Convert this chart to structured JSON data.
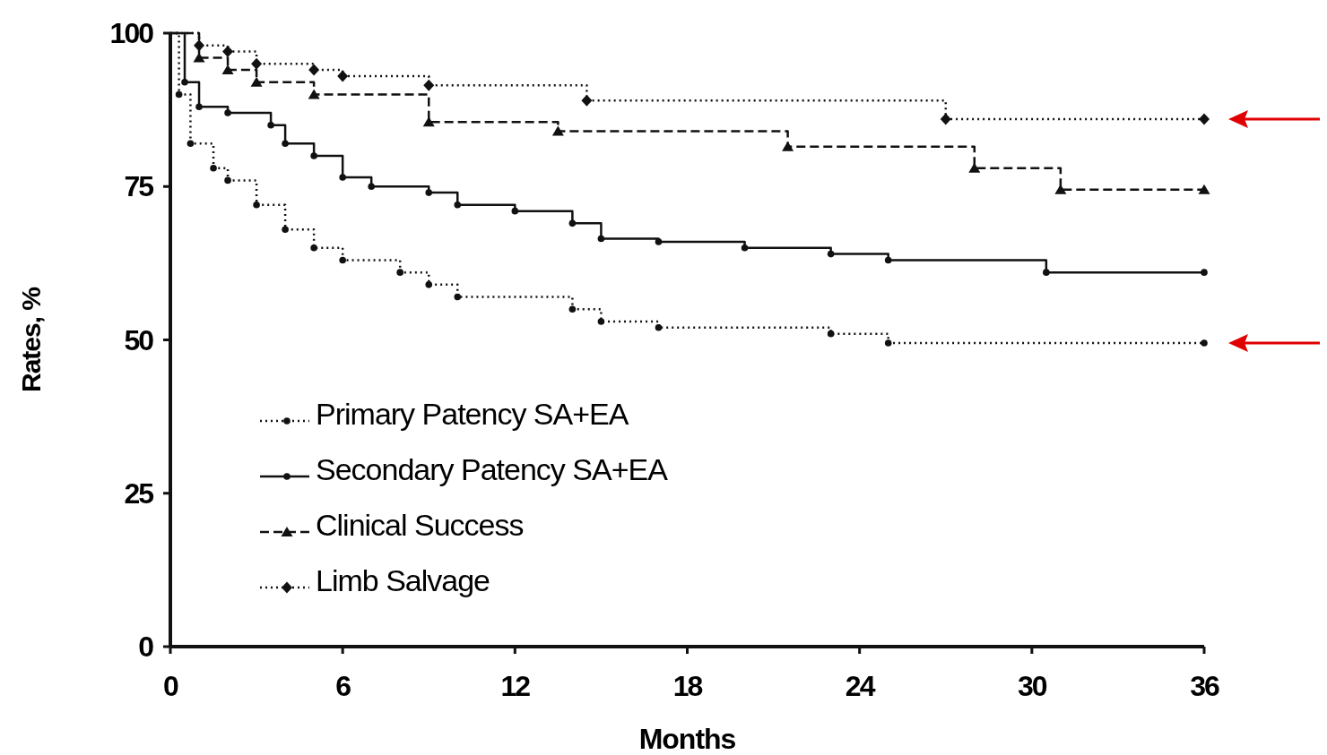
{
  "chart_data": {
    "type": "step",
    "xlabel": "Months",
    "ylabel": "Rates, %",
    "xlim": [
      0,
      36
    ],
    "ylim": [
      0,
      100
    ],
    "xticks": [
      0,
      6,
      12,
      18,
      24,
      30,
      36
    ],
    "yticks": [
      0,
      25,
      50,
      75,
      100
    ],
    "grid": false,
    "legend": "bottom left",
    "series": [
      {
        "name": "Primary Patency SA+EA",
        "color": "#111111",
        "line_style": "dotted",
        "marker": "circle",
        "x": [
          0,
          0.3,
          0.7,
          1.5,
          2,
          3,
          4,
          5,
          6,
          8,
          9,
          10,
          14,
          15,
          17,
          23,
          25,
          36
        ],
        "values": [
          100,
          90,
          82,
          78,
          76,
          72,
          68,
          65,
          63,
          61,
          59,
          57,
          55,
          53,
          52,
          51,
          49.5,
          49.5
        ]
      },
      {
        "name": "Secondary Patency SA+EA",
        "color": "#111111",
        "line_style": "solid",
        "marker": "circle",
        "x": [
          0,
          0.5,
          1,
          2,
          3.5,
          4,
          5,
          6,
          7,
          9,
          10,
          12,
          14,
          15,
          17,
          20,
          23,
          25,
          30.5,
          36
        ],
        "values": [
          100,
          92,
          88,
          87,
          85,
          82,
          80,
          76.5,
          75,
          74,
          72,
          71,
          69,
          66.5,
          66,
          65,
          64,
          63,
          61,
          61
        ]
      },
      {
        "name": "Clinical Success",
        "color": "#111111",
        "line_style": "dashed",
        "marker": "triangle",
        "x": [
          0,
          1,
          2,
          3,
          5,
          9,
          13.5,
          21.5,
          28,
          31,
          36
        ],
        "values": [
          100,
          96,
          94,
          92,
          90,
          85.5,
          84,
          81.5,
          78,
          74.5,
          74.5
        ]
      },
      {
        "name": "Limb Salvage",
        "color": "#111111",
        "line_style": "dotted",
        "marker": "diamond",
        "x": [
          0,
          1,
          2,
          3,
          5,
          6,
          9,
          14.5,
          27,
          36
        ],
        "values": [
          100,
          98,
          97,
          95,
          94,
          93,
          91.5,
          89,
          86,
          86
        ]
      }
    ]
  }
}
